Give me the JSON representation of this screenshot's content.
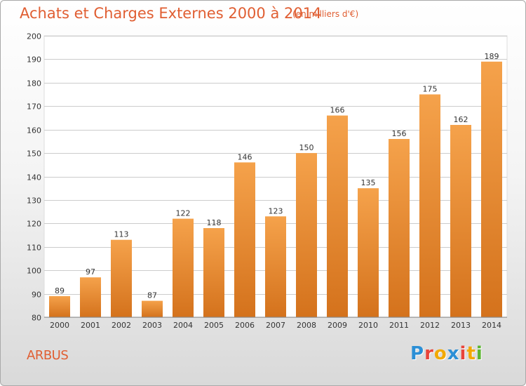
{
  "title": "Achats et Charges Externes 2000 à 2014",
  "subtitle": "(en milliers d'€)",
  "place": "ARBUS",
  "logo": {
    "letters": [
      "P",
      "r",
      "o",
      "x",
      "i",
      "t",
      "i"
    ],
    "colors": [
      "#2b8fd6",
      "#e9443a",
      "#f2a900",
      "#2b8fd6",
      "#e9443a",
      "#f2a900",
      "#5bb531"
    ]
  },
  "colors": {
    "title": "#e05e32",
    "bar_top": "#f5a24b",
    "bar_bottom": "#d4721c",
    "grid": "#cccccc"
  },
  "chart_data": {
    "type": "bar",
    "categories": [
      "2000",
      "2001",
      "2002",
      "2003",
      "2004",
      "2005",
      "2006",
      "2007",
      "2008",
      "2009",
      "2010",
      "2011",
      "2012",
      "2013",
      "2014"
    ],
    "values": [
      89,
      97,
      113,
      87,
      122,
      118,
      146,
      123,
      150,
      166,
      135,
      156,
      175,
      162,
      189
    ],
    "ylim": [
      80,
      200
    ],
    "yticks": [
      80,
      90,
      100,
      110,
      120,
      130,
      140,
      150,
      160,
      170,
      180,
      190,
      200
    ],
    "grid": true
  }
}
